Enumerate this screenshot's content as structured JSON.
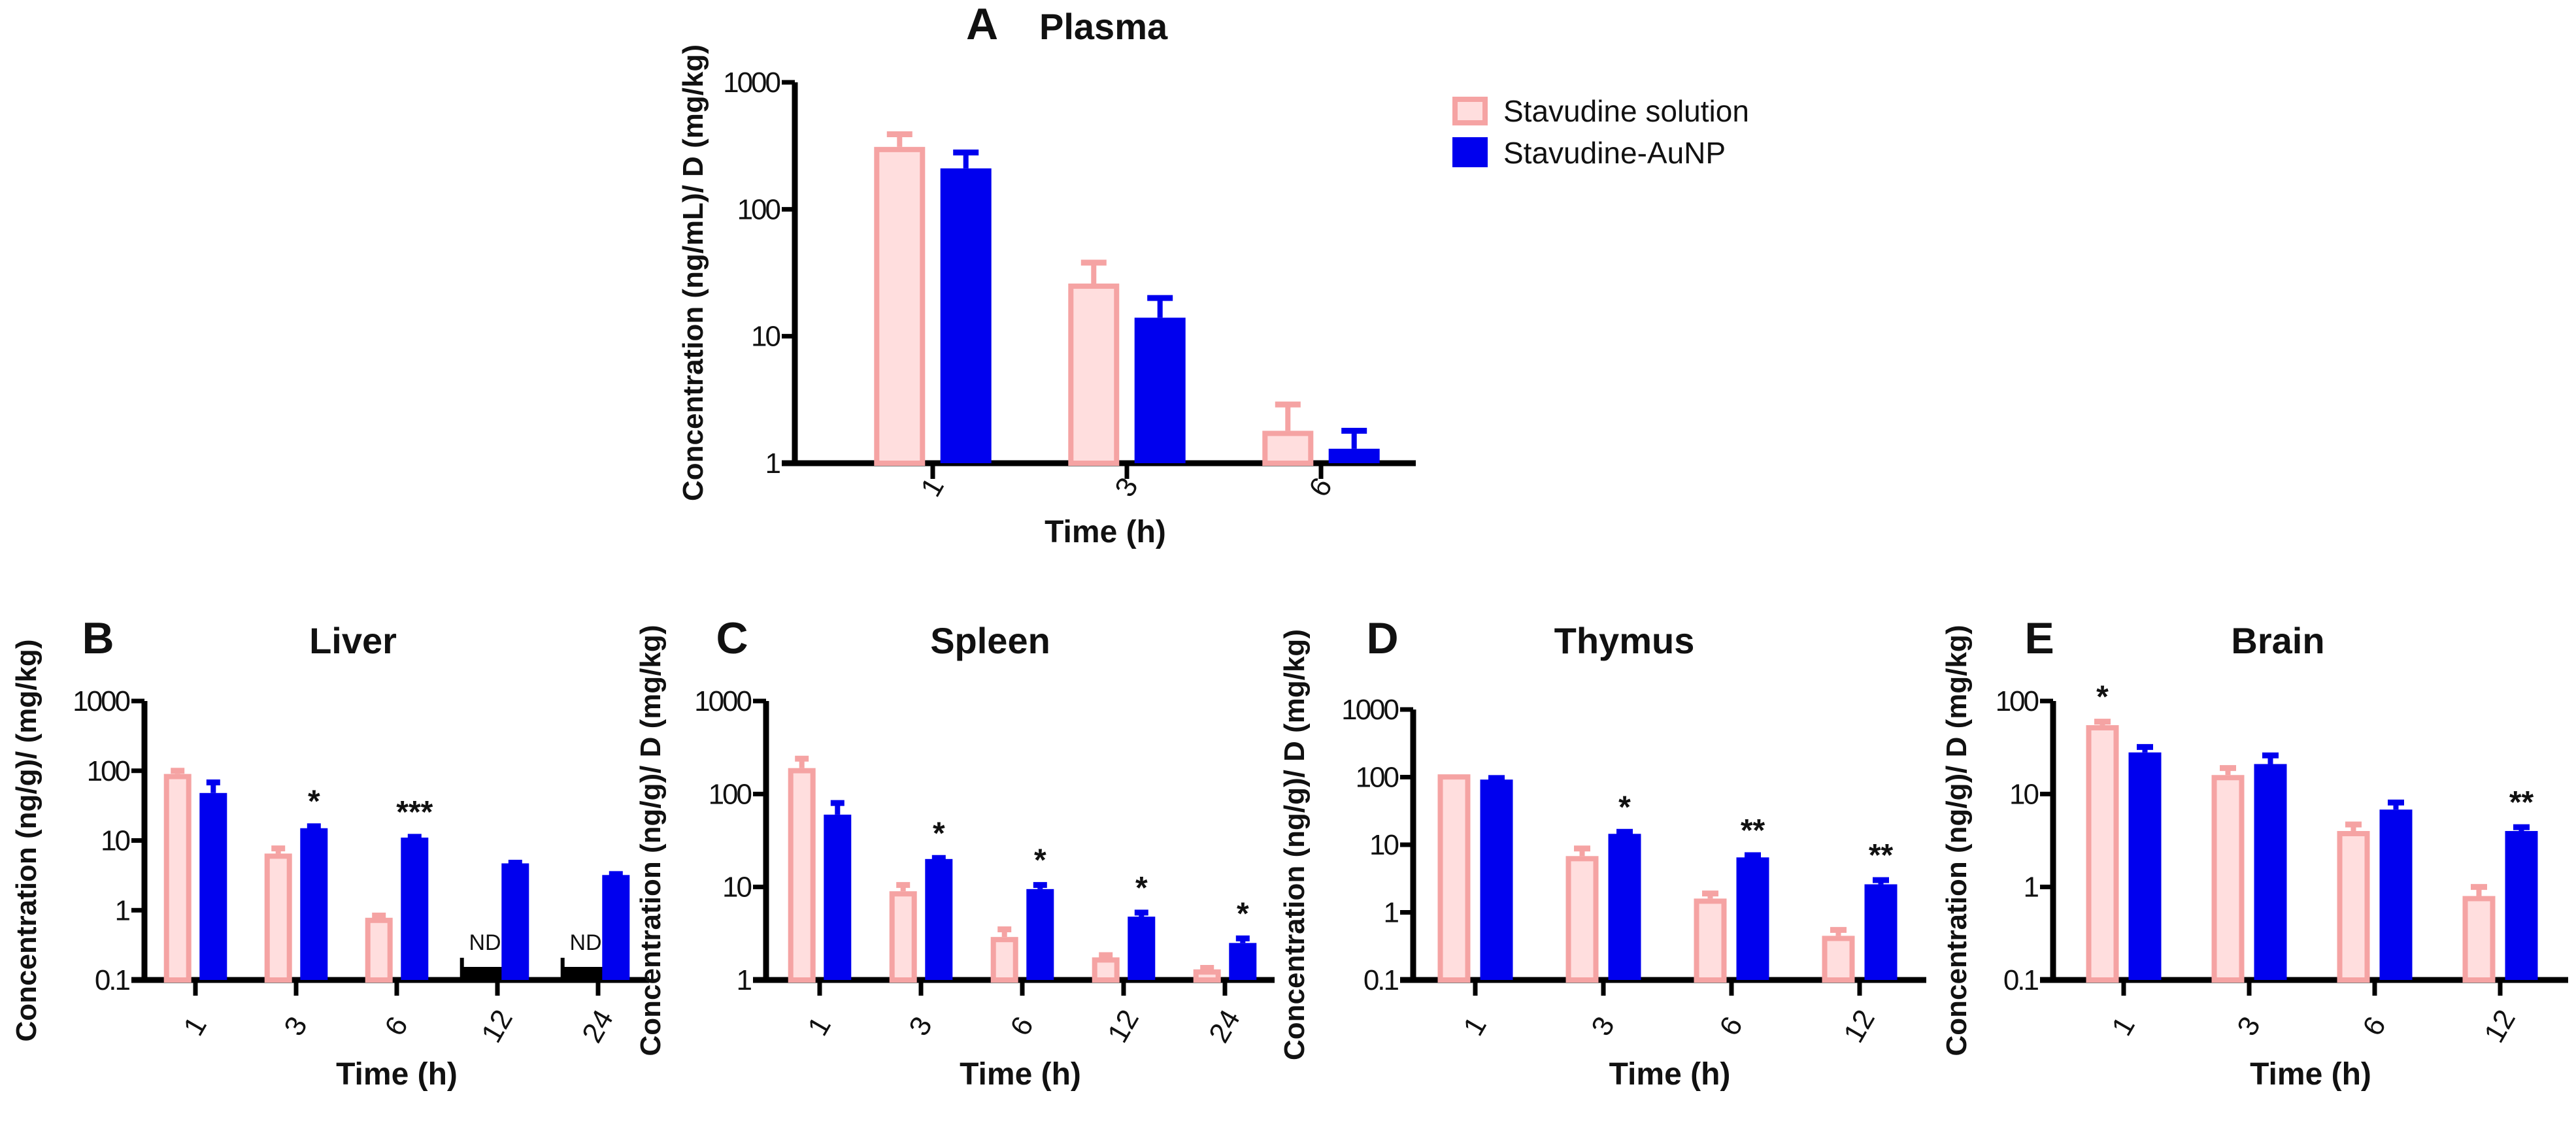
{
  "colors": {
    "solution_fill": "#ffdede",
    "solution_stroke": "#f5a3a3",
    "aunp": "#0000ee",
    "axis": "#000000"
  },
  "legend": {
    "items": [
      {
        "label": "Stavudine solution",
        "series": 0
      },
      {
        "label": "Stavudine-AuNP",
        "series": 1
      }
    ]
  },
  "chart_data": [
    {
      "type": "bar",
      "panel": "A",
      "title": "Plasma",
      "xlabel": "Time (h)",
      "ylabel": "Concentration (ng/mL)/ D (mg/kg)",
      "yscale": "log",
      "ylim": [
        1,
        1000
      ],
      "yticks": [
        "1",
        "10",
        "100",
        "1000"
      ],
      "categories": [
        "1",
        "3",
        "6"
      ],
      "series": [
        {
          "name": "Stavudine solution",
          "values": [
            310,
            26,
            1.8
          ],
          "errors": [
            80,
            12,
            1.1
          ]
        },
        {
          "name": "Stavudine-AuNP",
          "values": [
            210,
            14,
            1.3
          ],
          "errors": [
            70,
            6,
            0.5
          ]
        }
      ],
      "annotations": []
    },
    {
      "type": "bar",
      "panel": "B",
      "title": "Liver",
      "xlabel": "Time (h)",
      "ylabel": "Concentration (ng/g)/ (mg/kg)",
      "yscale": "log",
      "ylim": [
        0.1,
        1000
      ],
      "yticks": [
        "0.1",
        "1",
        "10",
        "100",
        "1000"
      ],
      "categories": [
        "1",
        "3",
        "6",
        "12",
        "24"
      ],
      "series": [
        {
          "name": "Stavudine solution",
          "values": [
            90,
            6.5,
            0.78,
            null,
            null
          ],
          "errors": [
            10,
            1.2,
            0.06,
            null,
            null
          ]
        },
        {
          "name": "Stavudine-AuNP",
          "values": [
            48,
            15,
            11,
            4.7,
            3.2
          ],
          "errors": [
            20,
            1,
            0.3,
            0.1,
            0.1
          ]
        }
      ],
      "nd_label": "ND",
      "annotations": [
        {
          "group": 1,
          "series": 1,
          "text": "*"
        },
        {
          "group": 2,
          "series": 1,
          "text": "***"
        }
      ]
    },
    {
      "type": "bar",
      "panel": "C",
      "title": "Spleen",
      "xlabel": "Time (h)",
      "ylabel": "Concentration (ng/g)/ D (mg/kg)",
      "yscale": "log",
      "ylim": [
        1,
        1000
      ],
      "yticks": [
        "1",
        "10",
        "100",
        "1000"
      ],
      "categories": [
        "1",
        "3",
        "6",
        "12",
        "24"
      ],
      "series": [
        {
          "name": "Stavudine solution",
          "values": [
            190,
            9,
            2.9,
            1.75,
            1.3
          ],
          "errors": [
            50,
            1.5,
            0.6,
            0.1,
            0.05
          ]
        },
        {
          "name": "Stavudine-AuNP",
          "values": [
            60,
            20,
            9.5,
            4.8,
            2.5
          ],
          "errors": [
            20,
            0.5,
            1,
            0.5,
            0.3
          ]
        }
      ],
      "annotations": [
        {
          "group": 1,
          "series": 1,
          "text": "*"
        },
        {
          "group": 2,
          "series": 1,
          "text": "*"
        },
        {
          "group": 3,
          "series": 1,
          "text": "*"
        },
        {
          "group": 4,
          "series": 1,
          "text": "*"
        }
      ]
    },
    {
      "type": "bar",
      "panel": "D",
      "title": "Thymus",
      "xlabel": "Time (h)",
      "ylabel": "Concentration (ng/g)/ D (mg/kg)",
      "yscale": "log",
      "ylim": [
        0.1,
        1000
      ],
      "yticks": [
        "0.1",
        "1",
        "10",
        "100",
        "1000"
      ],
      "categories": [
        "1",
        "3",
        "6",
        "12"
      ],
      "series": [
        {
          "name": "Stavudine solution",
          "values": [
            110,
            6.8,
            1.6,
            0.45
          ],
          "errors": [
            0,
            2,
            0.3,
            0.1
          ]
        },
        {
          "name": "Stavudine-AuNP",
          "values": [
            92,
            14.5,
            6.5,
            2.6
          ],
          "errors": [
            5,
            1,
            0.5,
            0.4
          ]
        }
      ],
      "annotations": [
        {
          "group": 1,
          "series": 1,
          "text": "*"
        },
        {
          "group": 2,
          "series": 1,
          "text": "**"
        },
        {
          "group": 3,
          "series": 1,
          "text": "**"
        }
      ]
    },
    {
      "type": "bar",
      "panel": "E",
      "title": "Brain",
      "xlabel": "Time (h)",
      "ylabel": "Concentration (ng/g)/ D (mg/kg)",
      "yscale": "log",
      "ylim": [
        0.1,
        100
      ],
      "yticks": [
        "0.1",
        "1",
        "10",
        "100"
      ],
      "categories": [
        "1",
        "3",
        "6",
        "12"
      ],
      "series": [
        {
          "name": "Stavudine solution",
          "values": [
            55,
            16,
            4,
            0.8
          ],
          "errors": [
            5,
            3,
            0.7,
            0.2
          ]
        },
        {
          "name": "Stavudine-AuNP",
          "values": [
            28,
            21,
            6.8,
            4
          ],
          "errors": [
            4,
            5,
            1.3,
            0.4
          ]
        }
      ],
      "annotations": [
        {
          "group": 0,
          "series": 0,
          "text": "*"
        },
        {
          "group": 3,
          "series": 1,
          "text": "**"
        }
      ]
    }
  ]
}
